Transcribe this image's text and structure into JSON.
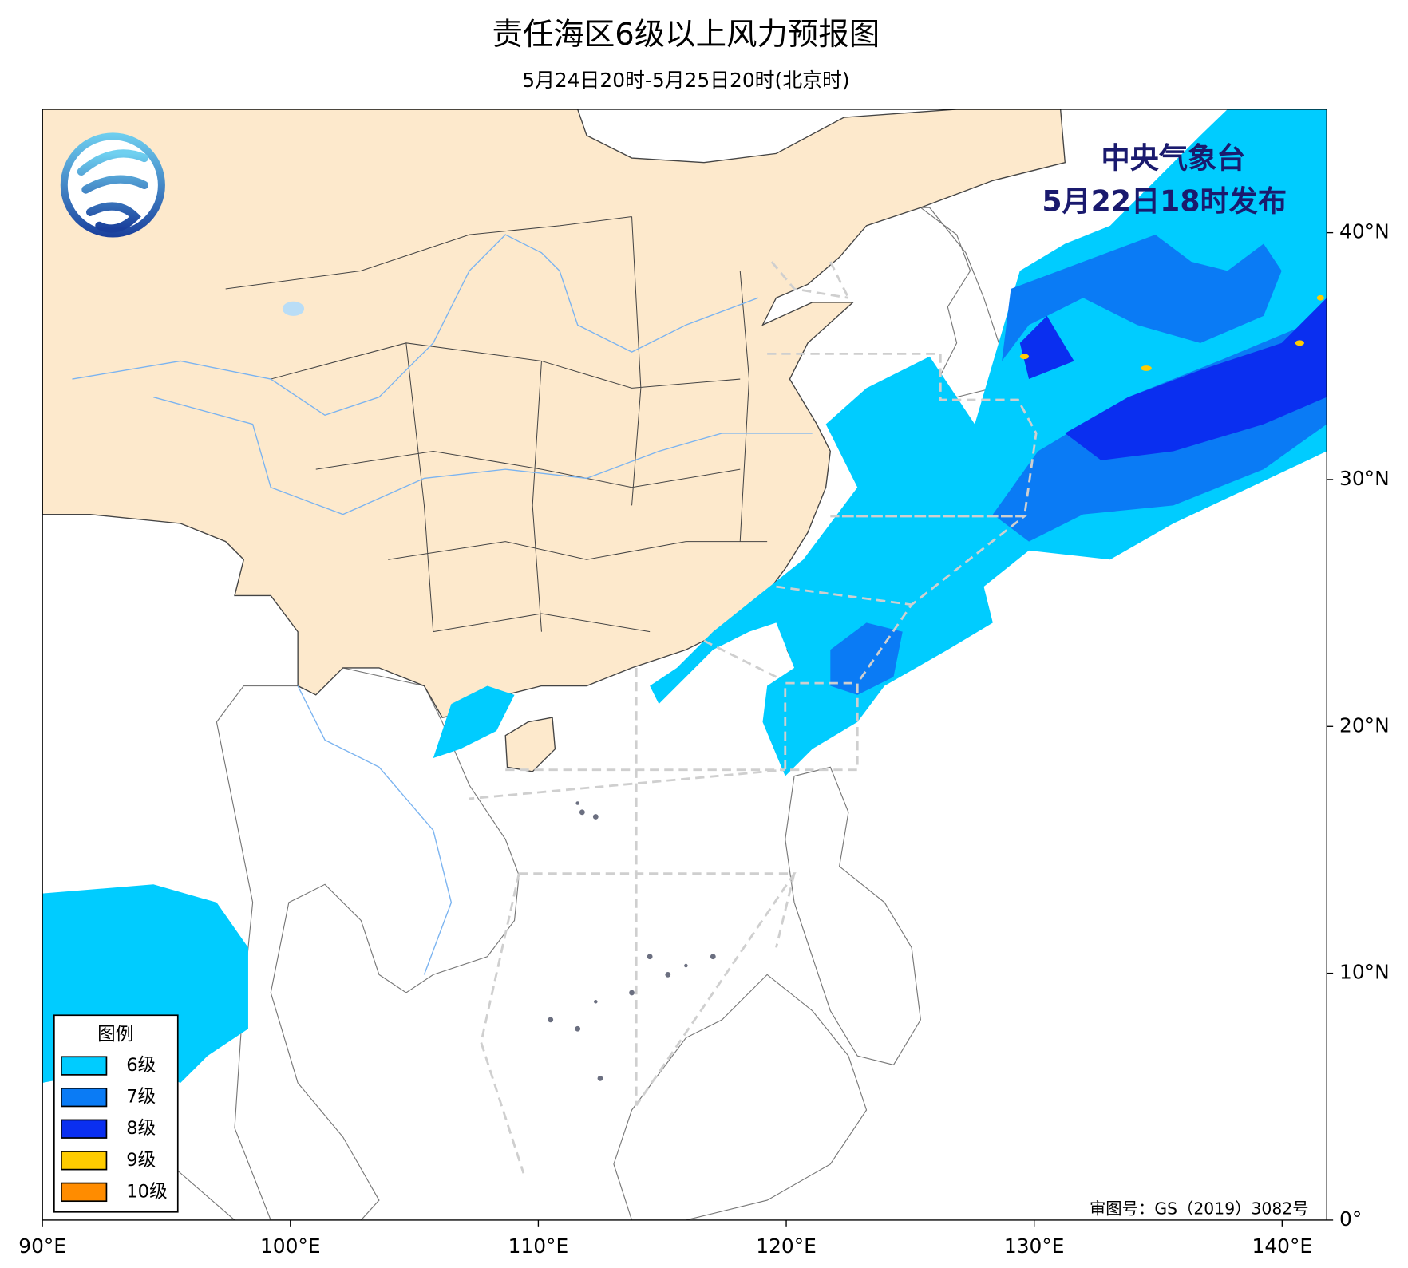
{
  "header": {
    "title": "责任海区6级以上风力预报图",
    "subtitle": "5月24日20时-5月25日20时(北京时)"
  },
  "issuer": {
    "name": "中央气象台",
    "time": "5月22日18时发布"
  },
  "approval": "审图号：GS（2019）3082号",
  "legend": {
    "title": "图例",
    "items": [
      {
        "label": "6级",
        "color": "#00ccff"
      },
      {
        "label": "7级",
        "color": "#0a7bf5"
      },
      {
        "label": "8级",
        "color": "#0a2ff0"
      },
      {
        "label": "9级",
        "color": "#ffcc00"
      },
      {
        "label": "10级",
        "color": "#ff8c00"
      }
    ]
  },
  "axes": {
    "xlim": [
      90,
      141.8
    ],
    "ylim": [
      0,
      45
    ],
    "xticks": [
      {
        "value": 90,
        "label": "90°E"
      },
      {
        "value": 100,
        "label": "100°E"
      },
      {
        "value": 110,
        "label": "110°E"
      },
      {
        "value": 120,
        "label": "120°E"
      },
      {
        "value": 130,
        "label": "130°E"
      },
      {
        "value": 140,
        "label": "140°E"
      }
    ],
    "yticks": [
      {
        "value": 0,
        "label": "0°"
      },
      {
        "value": 10,
        "label": "10°N"
      },
      {
        "value": 20,
        "label": "20°N"
      },
      {
        "value": 30,
        "label": "30°N"
      },
      {
        "value": 40,
        "label": "40°N"
      }
    ]
  }
}
